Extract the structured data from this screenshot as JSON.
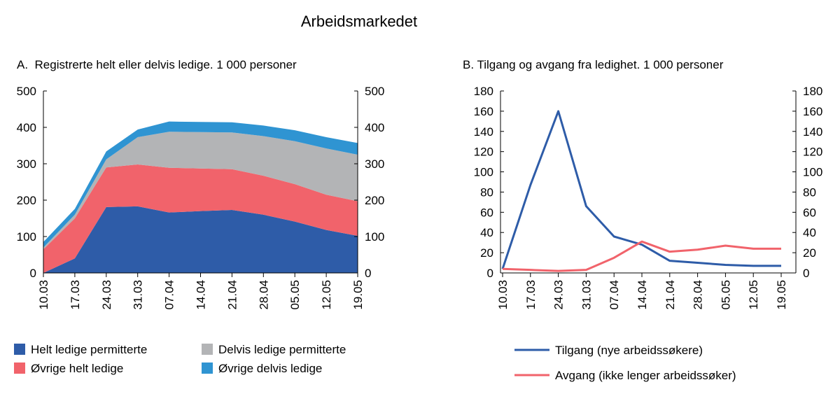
{
  "title": "Arbeidsmarkedet",
  "chart_data": [
    {
      "type": "area",
      "stacked": true,
      "title": "A.  Registrerte helt eller delvis ledige. 1 000 personer",
      "xlabel": "",
      "ylabel": "",
      "categories": [
        "10.03",
        "17.03",
        "24.03",
        "31.03",
        "07.04",
        "14.04",
        "21.04",
        "28.04",
        "05.05",
        "12.05",
        "19.05"
      ],
      "ylim": [
        0,
        500
      ],
      "yticks": [
        "0",
        "100",
        "200",
        "300",
        "400",
        "500"
      ],
      "grid": false,
      "legend_position": "bottom",
      "series": [
        {
          "name": "Helt ledige permitterte",
          "color": "#2e5ca8",
          "values": [
            0,
            40,
            181,
            183,
            166,
            170,
            173,
            160,
            141,
            118,
            102
          ]
        },
        {
          "name": "Øvrige helt ledige",
          "color": "#f1636b",
          "values": [
            65,
            110,
            109,
            115,
            123,
            117,
            112,
            107,
            103,
            97,
            95
          ]
        },
        {
          "name": "Delvis ledige permitterte",
          "color": "#b3b4b6",
          "values": [
            5,
            10,
            22,
            75,
            99,
            100,
            101,
            109,
            118,
            127,
            128
          ]
        },
        {
          "name": "Øvrige delvis ledige",
          "color": "#2f94d2",
          "values": [
            15,
            16,
            22,
            21,
            28,
            28,
            28,
            29,
            30,
            31,
            32
          ]
        }
      ]
    },
    {
      "type": "line",
      "title": "B. Tilgang og avgang fra ledighet. 1 000 personer",
      "xlabel": "",
      "ylabel": "",
      "categories": [
        "10.03",
        "17.03",
        "24.03",
        "31.03",
        "07.04",
        "14.04",
        "21.04",
        "28.04",
        "05.05",
        "12.05",
        "19.05"
      ],
      "ylim": [
        0,
        180
      ],
      "yticks": [
        "0",
        "20",
        "40",
        "60",
        "80",
        "100",
        "120",
        "140",
        "160",
        "180"
      ],
      "grid": false,
      "legend_position": "bottom",
      "series": [
        {
          "name": "Tilgang (nye arbeidssøkere)",
          "color": "#2e5ca8",
          "values": [
            4,
            87,
            160,
            66,
            36,
            28,
            12,
            10,
            8,
            7,
            7
          ]
        },
        {
          "name": "Avgang (ikke lenger arbeidssøker)",
          "color": "#f1636b",
          "values": [
            4,
            3,
            2,
            3,
            15,
            31,
            21,
            23,
            27,
            24,
            24
          ]
        }
      ]
    }
  ]
}
